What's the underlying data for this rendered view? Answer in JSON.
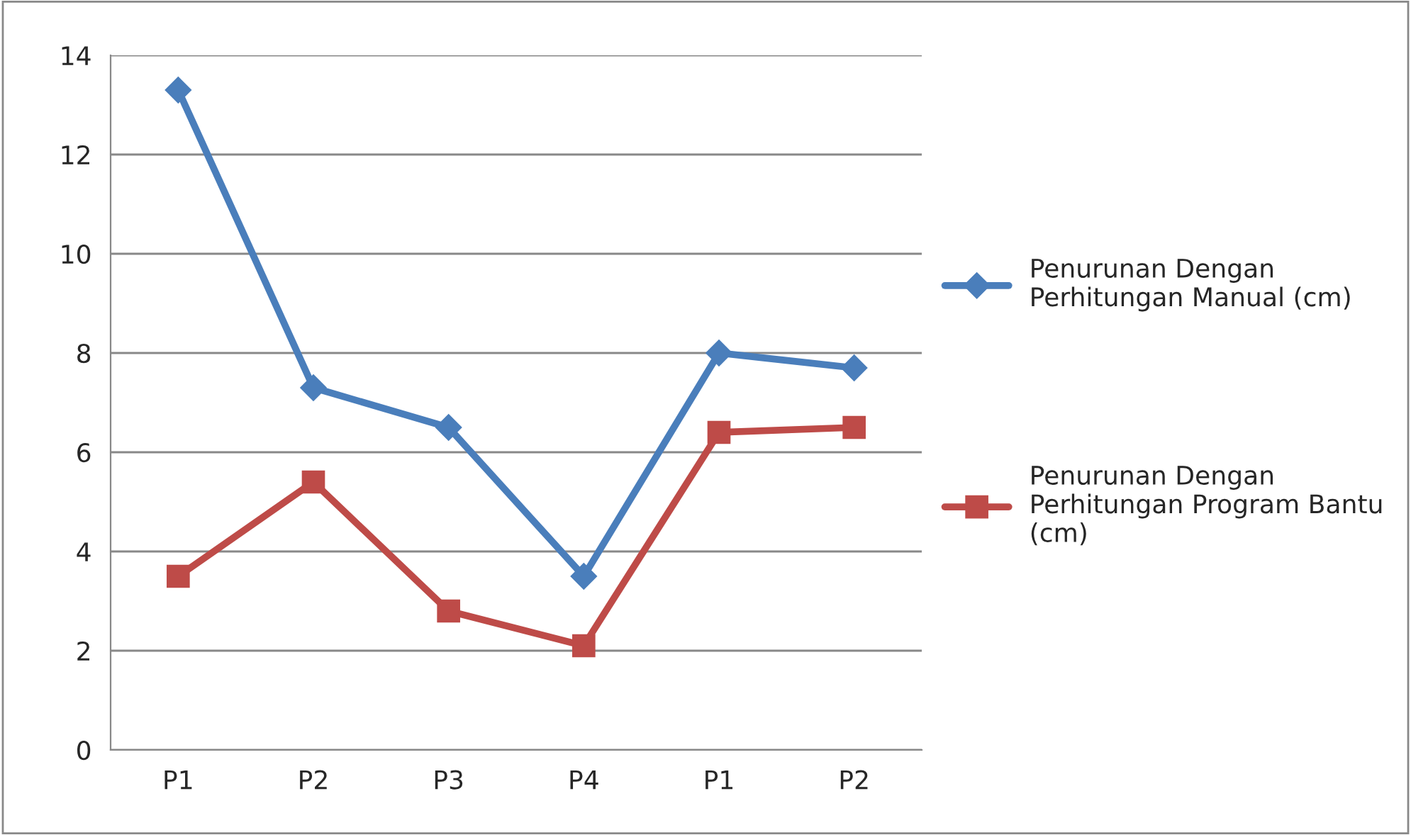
{
  "chart_data": {
    "type": "line",
    "categories": [
      "P1",
      "P2",
      "P3",
      "P4",
      "P1",
      "P2"
    ],
    "series": [
      {
        "name": "Penurunan Dengan\nPerhitungan Manual (cm)",
        "color": "#4a7ebb",
        "marker": "diamond",
        "values": [
          13.3,
          7.3,
          6.5,
          3.5,
          8.0,
          7.7
        ]
      },
      {
        "name": "Penurunan Dengan\nPerhitungan Program Bantu\n(cm)",
        "color": "#be4b48",
        "marker": "square",
        "values": [
          3.5,
          5.4,
          2.8,
          2.1,
          6.4,
          6.5
        ]
      }
    ],
    "ylim": [
      0,
      14
    ],
    "yticks": [
      0,
      2,
      4,
      6,
      8,
      10,
      12,
      14
    ],
    "grid": "y",
    "legend": "right",
    "line_style": "solid"
  }
}
